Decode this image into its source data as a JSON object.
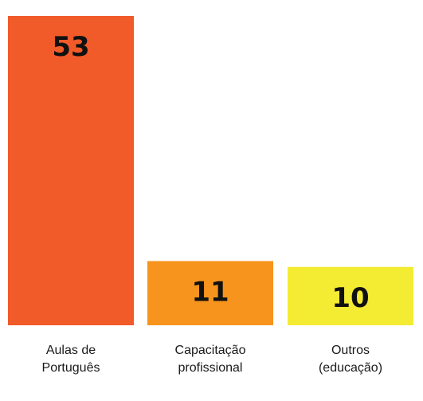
{
  "chart_data": {
    "type": "bar",
    "categories": [
      [
        "Aulas de",
        "Português"
      ],
      [
        "Capacitação",
        "profissional"
      ],
      [
        "Outros",
        "(educação)"
      ]
    ],
    "values": [
      53,
      11,
      10
    ],
    "value_labels": [
      "53",
      "11",
      "10"
    ],
    "colors": [
      "#F15A29",
      "#F7941D",
      "#F4EB33"
    ],
    "title": "",
    "xlabel": "",
    "ylabel": "",
    "ylim": [
      0,
      53
    ],
    "grid": false,
    "legend": "none"
  }
}
